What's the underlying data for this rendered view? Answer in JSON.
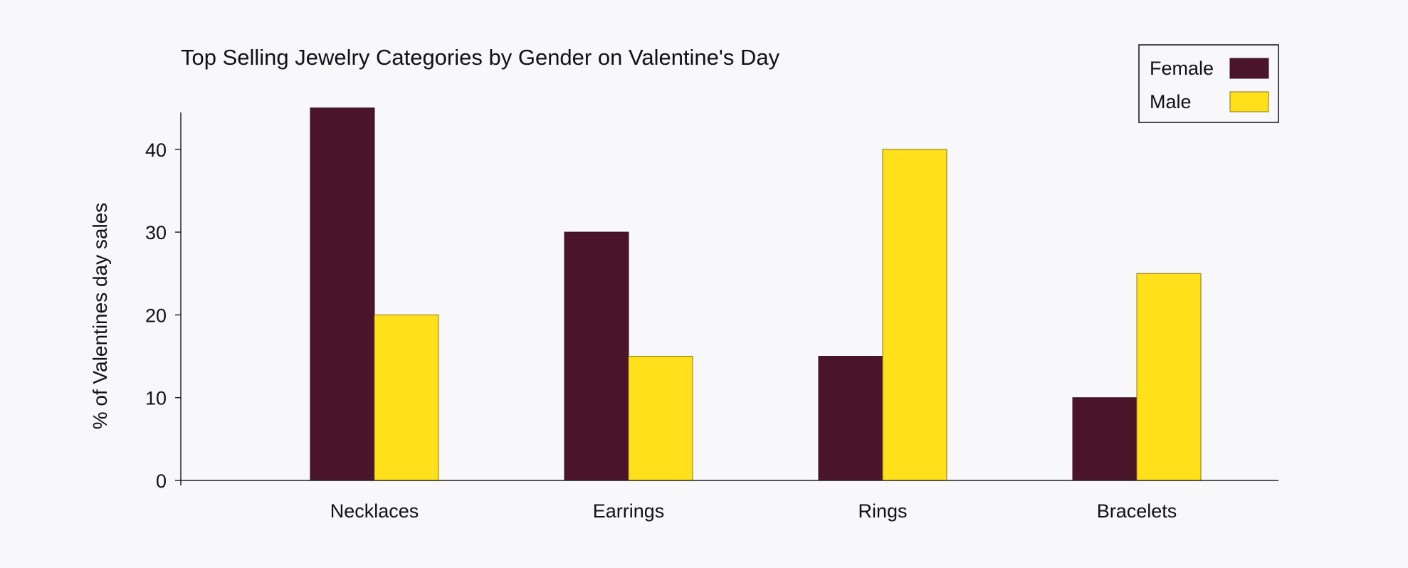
{
  "chart_data": {
    "type": "bar",
    "title": "Top Selling Jewelry Categories by Gender on Valentine's Day",
    "xlabel": "",
    "ylabel": "% of Valentines day sales",
    "categories": [
      "Necklaces",
      "Earrings",
      "Rings",
      "Bracelets"
    ],
    "series": [
      {
        "name": "Female",
        "color": "#4a1529",
        "values": [
          45,
          30,
          15,
          10
        ]
      },
      {
        "name": "Male",
        "color": "#ffe01b",
        "values": [
          20,
          15,
          40,
          25
        ]
      }
    ],
    "ylim": [
      0,
      45
    ],
    "yticks": [
      0,
      10,
      20,
      30,
      40
    ],
    "grid": false,
    "legend_position": "top-right"
  }
}
